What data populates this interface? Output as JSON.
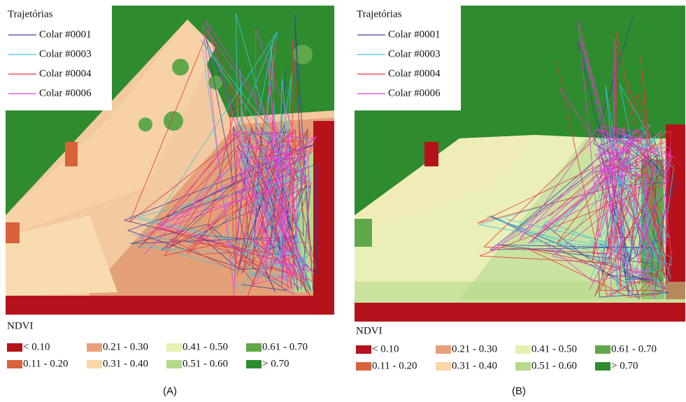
{
  "panels": [
    {
      "map": {
        "legend_title": "Trajetórias",
        "tracks": [
          {
            "name": "Colar #0001",
            "color": "#3a3f9e"
          },
          {
            "name": "Colar #0003",
            "color": "#3fc6e0"
          },
          {
            "name": "Colar #0004",
            "color": "#e8343c"
          },
          {
            "name": "Colar #0006",
            "color": "#e83ad8"
          }
        ]
      },
      "ndvi_legend": {
        "title": "NDVI",
        "classes": [
          {
            "label": "< 0.10",
            "color": "#b5121b"
          },
          {
            "label": "0.11 - 0.20",
            "color": "#d9623b"
          },
          {
            "label": "0.21 - 0.30",
            "color": "#e8a07a"
          },
          {
            "label": "0.31 - 0.40",
            "color": "#fad6a5"
          },
          {
            "label": "0.41 - 0.50",
            "color": "#e8f0b0"
          },
          {
            "label": "0.51 - 0.60",
            "color": "#b5d98a"
          },
          {
            "label": "0.61 - 0.70",
            "color": "#5fa84a"
          },
          {
            "label": "> 0.70",
            "color": "#2e8b2e"
          }
        ]
      },
      "caption": "(A)"
    },
    {
      "map": {
        "legend_title": "Trajetórias",
        "tracks": [
          {
            "name": "Colar #0001",
            "color": "#3a3f9e"
          },
          {
            "name": "Colar #0003",
            "color": "#3fc6e0"
          },
          {
            "name": "Colar #0004",
            "color": "#e8343c"
          },
          {
            "name": "Colar #0006",
            "color": "#e83ad8"
          }
        ]
      },
      "ndvi_legend": {
        "title": "NDVI",
        "classes": [
          {
            "label": "< 0.10",
            "color": "#b5121b"
          },
          {
            "label": "0.11 - 0.20",
            "color": "#d9623b"
          },
          {
            "label": "0.21 - 0.30",
            "color": "#e8a07a"
          },
          {
            "label": "0.31 - 0.40",
            "color": "#fad6a5"
          },
          {
            "label": "0.41 - 0.50",
            "color": "#e8f0b0"
          },
          {
            "label": "0.51 - 0.60",
            "color": "#b5d98a"
          },
          {
            "label": "0.61 - 0.70",
            "color": "#5fa84a"
          },
          {
            "label": "> 0.70",
            "color": "#2e8b2e"
          }
        ]
      },
      "caption": "(B)"
    }
  ]
}
